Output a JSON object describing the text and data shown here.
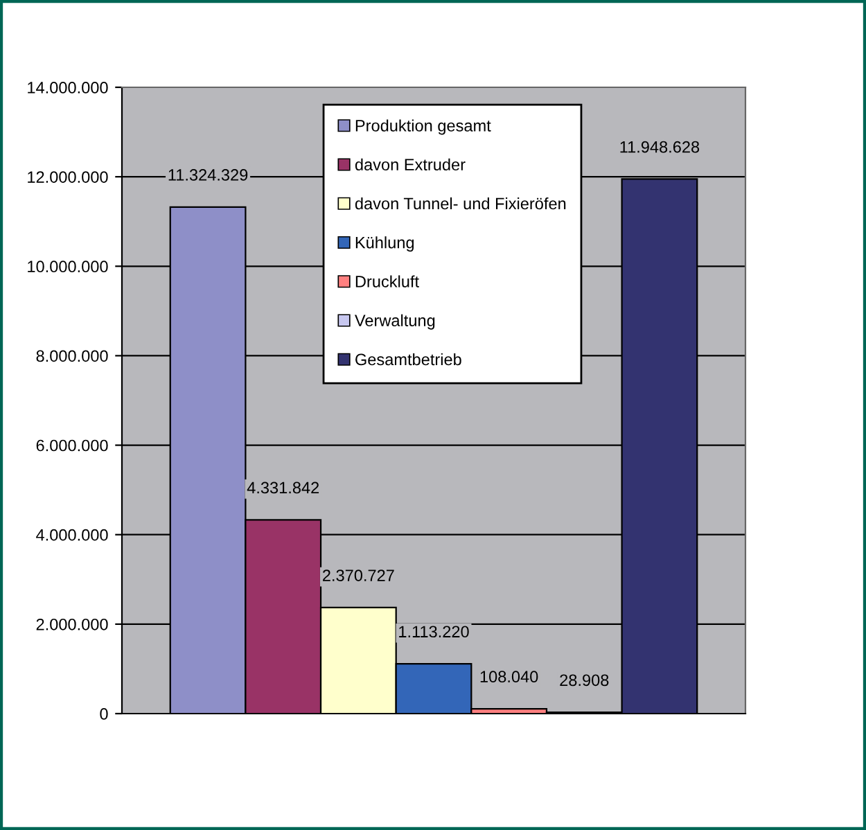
{
  "chart_data": {
    "type": "bar",
    "categories": [
      null
    ],
    "series": [
      {
        "name": "Produktion gesamt",
        "color": "#8e8fc8",
        "values": [
          11324329
        ],
        "value_labels": [
          "11.324.329"
        ]
      },
      {
        "name": "davon Extruder",
        "color": "#993366",
        "values": [
          4331842
        ],
        "value_labels": [
          "4.331.842"
        ]
      },
      {
        "name": "davon Tunnel- und Fixieröfen",
        "color": "#ffffcc",
        "values": [
          2370727
        ],
        "value_labels": [
          "2.370.727"
        ]
      },
      {
        "name": "Kühlung",
        "color": "#3366b8",
        "values": [
          1113220
        ],
        "value_labels": [
          "1.113.220"
        ]
      },
      {
        "name": "Druckluft",
        "color": "#ff8080",
        "values": [
          108040
        ],
        "value_labels": [
          "108.040"
        ]
      },
      {
        "name": "Verwaltung",
        "color": "#c8c8f0",
        "values": [
          28908
        ],
        "value_labels": [
          "28.908"
        ]
      },
      {
        "name": "Gesamtbetrieb",
        "color": "#333370",
        "values": [
          11948628
        ],
        "value_labels": [
          "11.948.628"
        ]
      }
    ],
    "ylim": [
      0,
      14000000
    ],
    "yticks": [
      {
        "value": 0,
        "label": "0"
      },
      {
        "value": 2000000,
        "label": "2.000.000"
      },
      {
        "value": 4000000,
        "label": "4.000.000"
      },
      {
        "value": 6000000,
        "label": "6.000.000"
      },
      {
        "value": 8000000,
        "label": "8.000.000"
      },
      {
        "value": 10000000,
        "label": "10.000.000"
      },
      {
        "value": 12000000,
        "label": "12.000.000"
      },
      {
        "value": 14000000,
        "label": "14.000.000"
      }
    ],
    "grid": "y",
    "legend": "top"
  }
}
